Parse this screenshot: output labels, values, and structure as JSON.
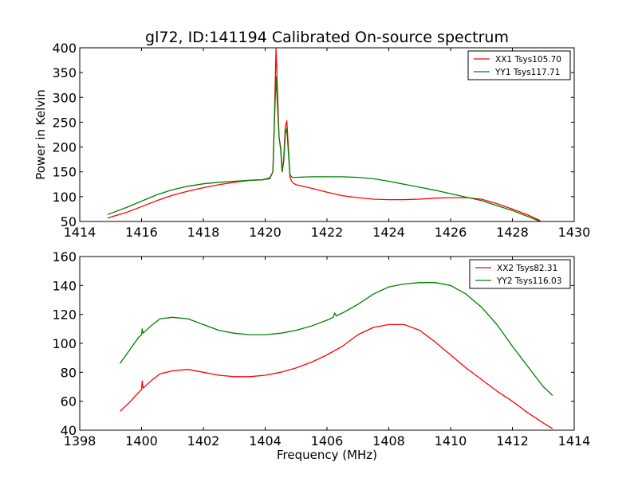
{
  "chart_data": [
    {
      "type": "line",
      "title": "gl72, ID:141194 Calibrated On-source spectrum",
      "xlabel": "",
      "ylabel": "Power in Kelvin",
      "xlim": [
        1414,
        1430
      ],
      "ylim": [
        50,
        400
      ],
      "xticks": [
        1414,
        1416,
        1418,
        1420,
        1422,
        1424,
        1426,
        1428,
        1430
      ],
      "yticks": [
        50,
        100,
        150,
        200,
        250,
        300,
        350,
        400
      ],
      "legend_position": "top-right",
      "series": [
        {
          "name": "XX1 Tsys105.70",
          "color": "#ff0000",
          "x": [
            1414.9,
            1415.5,
            1416.0,
            1416.5,
            1417.0,
            1417.5,
            1418.0,
            1418.5,
            1419.0,
            1419.5,
            1419.9,
            1420.15,
            1420.25,
            1420.3,
            1420.35,
            1420.4,
            1420.45,
            1420.5,
            1420.55,
            1420.6,
            1420.65,
            1420.7,
            1420.75,
            1420.8,
            1420.85,
            1420.9,
            1421.0,
            1421.5,
            1422.0,
            1422.5,
            1423.0,
            1423.5,
            1424.0,
            1424.5,
            1425.0,
            1425.5,
            1426.0,
            1426.5,
            1427.0,
            1427.5,
            1428.0,
            1428.5,
            1428.9
          ],
          "values": [
            57,
            68,
            80,
            92,
            103,
            111,
            118,
            124,
            129,
            133,
            134,
            136,
            150,
            260,
            398,
            310,
            220,
            200,
            150,
            175,
            240,
            253,
            200,
            140,
            132,
            128,
            124,
            117,
            109,
            102,
            98,
            95,
            94,
            94,
            95,
            97,
            98,
            98,
            95,
            86,
            75,
            63,
            52
          ]
        },
        {
          "name": "YY1 Tsys117.71",
          "color": "#008000",
          "x": [
            1414.9,
            1415.5,
            1416.0,
            1416.5,
            1417.0,
            1417.5,
            1418.0,
            1418.5,
            1419.0,
            1419.5,
            1419.9,
            1420.15,
            1420.25,
            1420.3,
            1420.35,
            1420.4,
            1420.45,
            1420.5,
            1420.55,
            1420.6,
            1420.65,
            1420.7,
            1420.75,
            1420.8,
            1420.85,
            1420.9,
            1421.0,
            1421.5,
            1422.0,
            1422.5,
            1423.0,
            1423.5,
            1424.0,
            1424.5,
            1425.0,
            1425.5,
            1426.0,
            1426.5,
            1427.0,
            1427.5,
            1428.0,
            1428.5,
            1428.9
          ],
          "values": [
            64,
            78,
            91,
            104,
            114,
            121,
            126,
            129,
            131,
            133,
            134,
            138,
            150,
            250,
            342,
            280,
            220,
            195,
            150,
            170,
            225,
            238,
            190,
            145,
            140,
            139,
            139,
            140,
            140,
            140,
            139,
            136,
            131,
            125,
            119,
            113,
            106,
            99,
            92,
            82,
            72,
            60,
            50
          ]
        }
      ]
    },
    {
      "type": "line",
      "title": "",
      "xlabel": "Frequency (MHz)",
      "ylabel": "",
      "xlim": [
        1398,
        1414
      ],
      "ylim": [
        40,
        160
      ],
      "xticks": [
        1398,
        1400,
        1402,
        1404,
        1406,
        1408,
        1410,
        1412,
        1414
      ],
      "yticks": [
        40,
        60,
        80,
        100,
        120,
        140,
        160
      ],
      "legend_position": "top-right",
      "series": [
        {
          "name": "XX2 Tsys82.31",
          "color": "#ff0000",
          "x": [
            1399.3,
            1399.6,
            1399.9,
            1400.0,
            1400.02,
            1400.05,
            1400.3,
            1400.6,
            1401.0,
            1401.5,
            1402.0,
            1402.5,
            1403.0,
            1403.5,
            1404.0,
            1404.5,
            1405.0,
            1405.5,
            1406.0,
            1406.5,
            1407.0,
            1407.5,
            1408.0,
            1408.5,
            1409.0,
            1409.5,
            1410.0,
            1410.5,
            1411.0,
            1411.5,
            1412.0,
            1412.5,
            1413.0,
            1413.3
          ],
          "values": [
            53,
            59,
            66,
            68,
            74,
            69,
            74,
            79,
            81,
            82,
            80,
            78,
            77,
            77,
            78,
            80,
            83,
            87,
            92,
            98,
            106,
            111,
            113,
            113,
            109,
            101,
            92,
            83,
            75,
            67,
            60,
            52,
            45,
            41
          ]
        },
        {
          "name": "YY2 Tsys116.03",
          "color": "#008000",
          "x": [
            1399.3,
            1399.6,
            1399.9,
            1400.0,
            1400.02,
            1400.05,
            1400.3,
            1400.6,
            1401.0,
            1401.5,
            1402.0,
            1402.5,
            1403.0,
            1403.5,
            1404.0,
            1404.5,
            1405.0,
            1405.5,
            1406.0,
            1406.2,
            1406.25,
            1406.3,
            1406.5,
            1407.0,
            1407.5,
            1408.0,
            1408.5,
            1409.0,
            1409.5,
            1410.0,
            1410.5,
            1411.0,
            1411.5,
            1412.0,
            1412.5,
            1413.0,
            1413.3
          ],
          "values": [
            86,
            95,
            104,
            106,
            110,
            107,
            112,
            117,
            118,
            117,
            113,
            109,
            107,
            106,
            106,
            107,
            109,
            112,
            116,
            118,
            121,
            119,
            121,
            127,
            134,
            139,
            141,
            142,
            142,
            140,
            134,
            125,
            113,
            98,
            84,
            70,
            64
          ]
        }
      ]
    }
  ]
}
